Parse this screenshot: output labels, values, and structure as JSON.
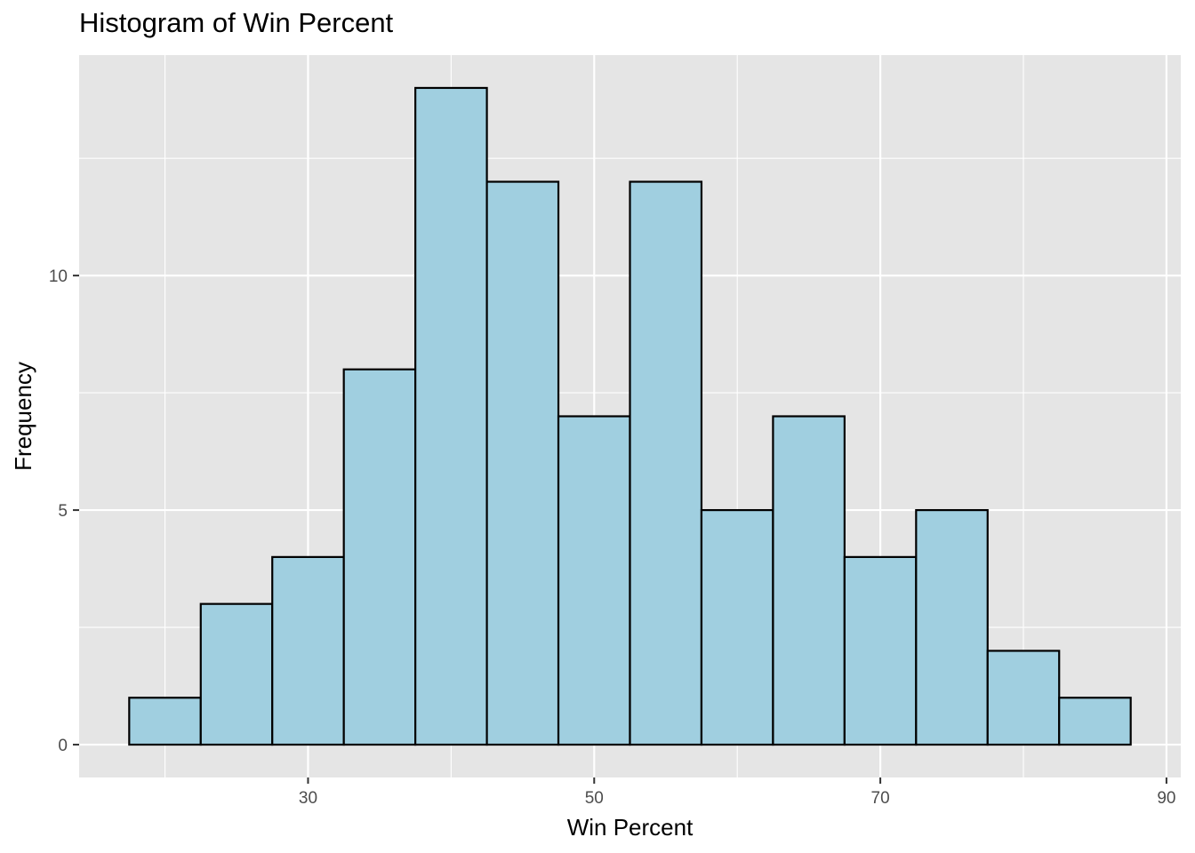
{
  "chart_data": {
    "type": "bar",
    "title": "Histogram of Win Percent",
    "xlabel": "Win Percent",
    "ylabel": "Frequency",
    "bin_width": 5,
    "bins": [
      {
        "start": 17.5,
        "end": 22.5,
        "count": 1
      },
      {
        "start": 22.5,
        "end": 27.5,
        "count": 3
      },
      {
        "start": 27.5,
        "end": 32.5,
        "count": 4
      },
      {
        "start": 32.5,
        "end": 37.5,
        "count": 8
      },
      {
        "start": 37.5,
        "end": 42.5,
        "count": 14
      },
      {
        "start": 42.5,
        "end": 47.5,
        "count": 12
      },
      {
        "start": 47.5,
        "end": 52.5,
        "count": 7
      },
      {
        "start": 52.5,
        "end": 57.5,
        "count": 12
      },
      {
        "start": 57.5,
        "end": 62.5,
        "count": 5
      },
      {
        "start": 62.5,
        "end": 67.5,
        "count": 7
      },
      {
        "start": 67.5,
        "end": 72.5,
        "count": 4
      },
      {
        "start": 72.5,
        "end": 77.5,
        "count": 5
      },
      {
        "start": 77.5,
        "end": 82.5,
        "count": 2
      },
      {
        "start": 82.5,
        "end": 87.5,
        "count": 1
      }
    ],
    "xlim": [
      14.0,
      91.0
    ],
    "ylim": [
      -0.7,
      14.7
    ],
    "x_major_ticks": [
      30,
      50,
      70,
      90
    ],
    "x_minor_ticks": [
      20,
      40,
      60,
      80
    ],
    "y_major_ticks": [
      0,
      5,
      10
    ],
    "y_minor_ticks": [
      2.5,
      7.5,
      12.5
    ],
    "grid": true,
    "legend": "none",
    "colors": {
      "bar_fill": "#a0cfe0",
      "bar_stroke": "#000000",
      "panel_background": "#e5e5e5",
      "grid_line": "#ffffff",
      "tick_text": "#4d4d4d"
    }
  }
}
